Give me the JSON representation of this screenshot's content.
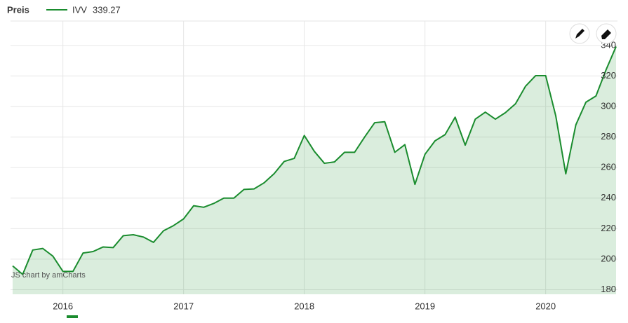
{
  "chart_data": {
    "type": "line",
    "legend_title": "Preis",
    "credit": "JS chart by amCharts",
    "categories": [
      null,
      null,
      null,
      null,
      null,
      "2016",
      null,
      null,
      null,
      null,
      null,
      null,
      null,
      null,
      null,
      null,
      null,
      "2017",
      null,
      null,
      null,
      null,
      null,
      null,
      null,
      null,
      null,
      null,
      null,
      "2018",
      null,
      null,
      null,
      null,
      null,
      null,
      null,
      null,
      null,
      null,
      null,
      "2019",
      null,
      null,
      null,
      null,
      null,
      null,
      null,
      null,
      null,
      null,
      null,
      "2020",
      null,
      null,
      null,
      null,
      null,
      null,
      null
    ],
    "series": [
      {
        "name": "IVV",
        "color": "#1a8c2e",
        "values": [
          195.6,
          190,
          206,
          207,
          202,
          192,
          192,
          204,
          205,
          208,
          207.6,
          215.4,
          216,
          214.5,
          211,
          218.6,
          222,
          226.4,
          235,
          234,
          236.5,
          240,
          240,
          245.7,
          246,
          250,
          256,
          264,
          266,
          281,
          270.6,
          262.8,
          263.7,
          270,
          270,
          280,
          289.4,
          290,
          270,
          275,
          249,
          268.7,
          277.5,
          281.6,
          293,
          274.7,
          291.7,
          296.3,
          291.7,
          296,
          301.8,
          313.3,
          320.2,
          320.2,
          294,
          255.9,
          288,
          302.8,
          306.9,
          324,
          339.27
        ]
      }
    ],
    "ylim": [
      177,
      356
    ],
    "yticks": [
      180,
      200,
      220,
      240,
      260,
      280,
      300,
      320,
      340
    ],
    "grid": true
  }
}
